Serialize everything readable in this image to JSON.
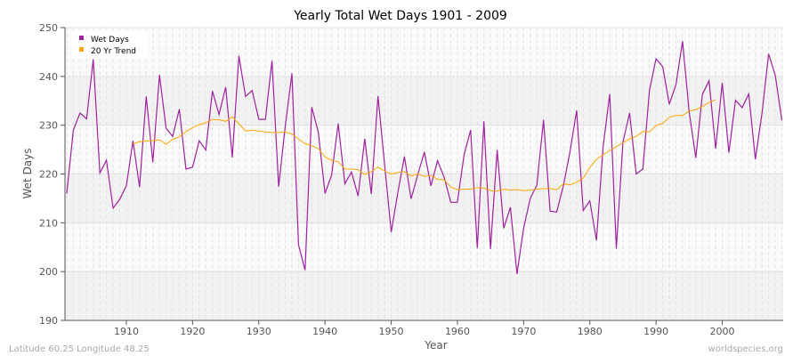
{
  "chart_data": {
    "type": "line",
    "title": "Yearly Total Wet Days 1901 - 2009",
    "xlabel": "Year",
    "ylabel": "Wet Days",
    "xlim": [
      1901,
      2009
    ],
    "ylim": [
      190,
      250
    ],
    "xticks": [
      1910,
      1920,
      1930,
      1940,
      1950,
      1960,
      1970,
      1980,
      1990,
      2000
    ],
    "yticks": [
      190,
      200,
      210,
      220,
      230,
      240,
      250
    ],
    "grid": true,
    "legend_position": "top-left",
    "series": [
      {
        "name": "Wet Days",
        "color": "#a020a0",
        "start_year": 1901,
        "values": [
          216,
          229,
          232.5,
          231.3,
          243.5,
          220.2,
          222.8,
          213,
          214.8,
          217.6,
          226.8,
          217.3,
          235.9,
          222.4,
          240.3,
          229.4,
          227.7,
          233.3,
          221,
          221.4,
          226.8,
          224.9,
          237,
          232.2,
          237.8,
          223.4,
          244.2,
          235.9,
          237.1,
          231.2,
          231.2,
          243.2,
          217.4,
          229.8,
          240.6,
          205.5,
          200.3,
          233.7,
          228.5,
          216,
          219.8,
          230.3,
          218,
          220.4,
          215.5,
          227.2,
          215.9,
          236,
          222,
          208.1,
          216.2,
          223.6,
          214.9,
          219.8,
          224.5,
          217.6,
          222.7,
          219.3,
          214.2,
          214.2,
          223.9,
          229,
          204.8,
          230.8,
          204.6,
          224.9,
          208.9,
          213.2,
          199.5,
          208.9,
          215,
          217.7,
          231.1,
          212.4,
          212.2,
          217.6,
          224.5,
          233,
          212.5,
          214.5,
          206.4,
          225.5,
          236.4,
          204.7,
          226.5,
          232.5,
          220,
          221,
          237.1,
          243.6,
          242,
          234.3,
          238.3,
          247.2,
          232.8,
          223.3,
          236.3,
          239.1,
          225.2,
          238.7,
          224.4,
          235.1,
          233.6,
          236.4,
          223,
          232.5,
          244.6,
          240.2,
          231
        ]
      },
      {
        "name": "20 Yr Trend",
        "color": "#ffa500",
        "start_year": 1911,
        "values": [
          226.2,
          226.6,
          226.8,
          226.8,
          227,
          226.1,
          227.1,
          227.6,
          228.7,
          229.5,
          230.1,
          230.5,
          231.2,
          231.1,
          230.8,
          231.7,
          230.3,
          228.8,
          229,
          228.8,
          228.6,
          228.5,
          228.5,
          228.6,
          228.2,
          227.2,
          226.2,
          225.8,
          225.2,
          223.5,
          222.8,
          222.5,
          221,
          221,
          220.9,
          219.9,
          220.5,
          221.4,
          220.6,
          220,
          220.3,
          220.5,
          219.6,
          220,
          219.5,
          219.7,
          218.9,
          218.8,
          217.3,
          216.8,
          216.9,
          216.9,
          217.2,
          217.1,
          216.6,
          216.5,
          216.9,
          216.7,
          216.8,
          216.6,
          216.7,
          216.9,
          217,
          217,
          216.8,
          218,
          217.8,
          218.3,
          219.2,
          221.3,
          223,
          223.9,
          224.8,
          225.6,
          226.4,
          227.2,
          227.7,
          228.7,
          228.6,
          229.9,
          230.4,
          231.6,
          232,
          232,
          232.9,
          233.2,
          233.8,
          234.7,
          235.2
        ]
      }
    ]
  },
  "footer": {
    "left": "Latitude 60.25 Longitude 48.25",
    "right": "worldspecies.org"
  }
}
